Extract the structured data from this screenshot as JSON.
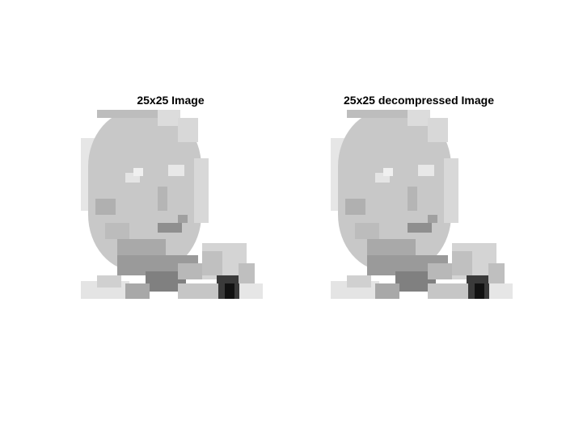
{
  "figure": {
    "panels": [
      {
        "title": "25x25 Image"
      },
      {
        "title": "25x25 decompressed Image"
      }
    ]
  }
}
